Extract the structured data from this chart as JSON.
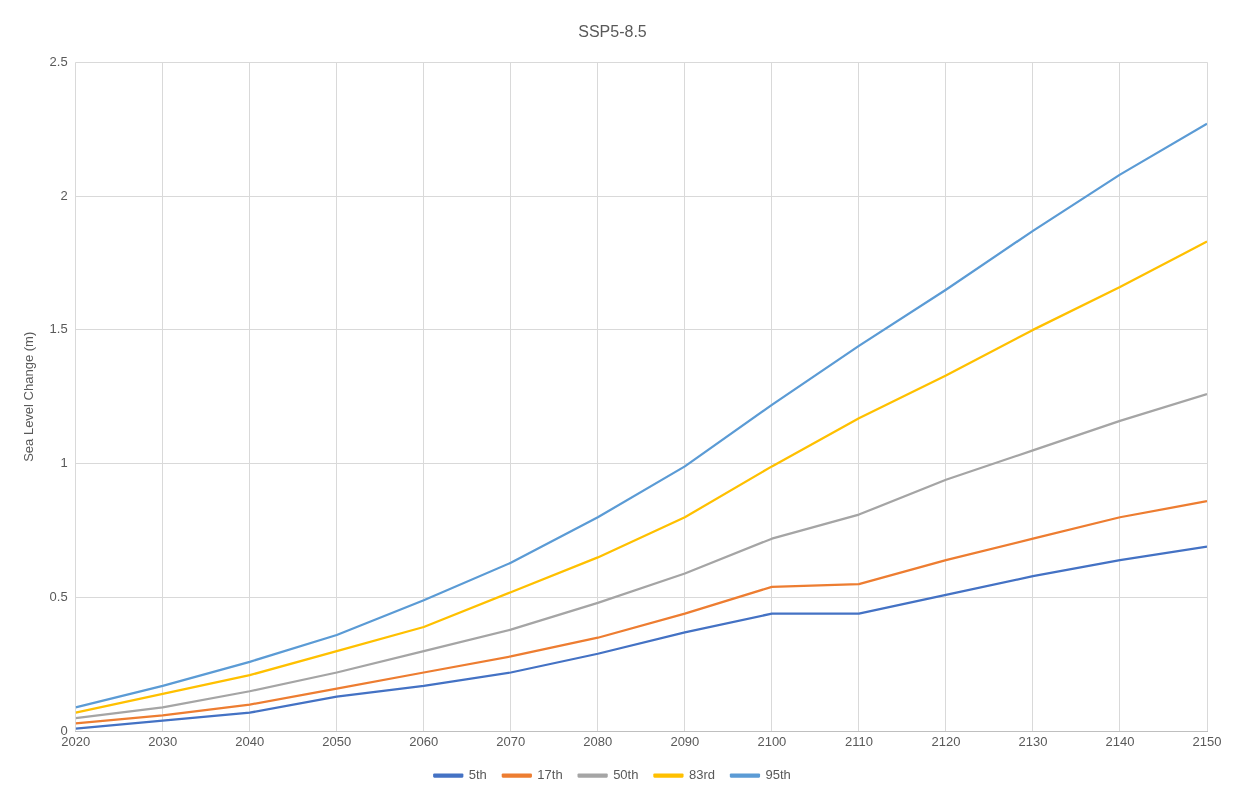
{
  "chart_data": {
    "type": "line",
    "title": "SSP5-8.5",
    "ylabel": "Sea Level Change (m)",
    "x": [
      2020,
      2030,
      2040,
      2050,
      2060,
      2070,
      2080,
      2090,
      2100,
      2110,
      2120,
      2130,
      2140,
      2150
    ],
    "series": [
      {
        "name": "5th",
        "color": "#4472c4",
        "values": [
          0.01,
          0.04,
          0.07,
          0.13,
          0.17,
          0.22,
          0.29,
          0.37,
          0.44,
          0.44,
          0.51,
          0.58,
          0.64,
          0.69
        ]
      },
      {
        "name": "17th",
        "color": "#ed7d31",
        "values": [
          0.03,
          0.06,
          0.1,
          0.16,
          0.22,
          0.28,
          0.35,
          0.44,
          0.54,
          0.55,
          0.64,
          0.72,
          0.8,
          0.86
        ]
      },
      {
        "name": "50th",
        "color": "#a5a5a5",
        "values": [
          0.05,
          0.09,
          0.15,
          0.22,
          0.3,
          0.38,
          0.48,
          0.59,
          0.72,
          0.81,
          0.94,
          1.05,
          1.16,
          1.26
        ]
      },
      {
        "name": "83rd",
        "color": "#ffc000",
        "values": [
          0.07,
          0.14,
          0.21,
          0.3,
          0.39,
          0.52,
          0.65,
          0.8,
          0.99,
          1.17,
          1.33,
          1.5,
          1.66,
          1.83
        ]
      },
      {
        "name": "95th",
        "color": "#5b9bd5",
        "values": [
          0.09,
          0.17,
          0.26,
          0.36,
          0.49,
          0.63,
          0.8,
          0.99,
          1.22,
          1.44,
          1.65,
          1.87,
          2.08,
          2.27
        ]
      }
    ],
    "xlim": [
      2020,
      2150
    ],
    "xticks": [
      2020,
      2030,
      2040,
      2050,
      2060,
      2070,
      2080,
      2090,
      2100,
      2110,
      2120,
      2130,
      2140,
      2150
    ],
    "ylim": [
      0,
      2.5
    ],
    "yticks": [
      0,
      0.5,
      1,
      1.5,
      2,
      2.5
    ],
    "grid": true,
    "legend": "bottom",
    "marker": "none",
    "line_style": "solid"
  }
}
